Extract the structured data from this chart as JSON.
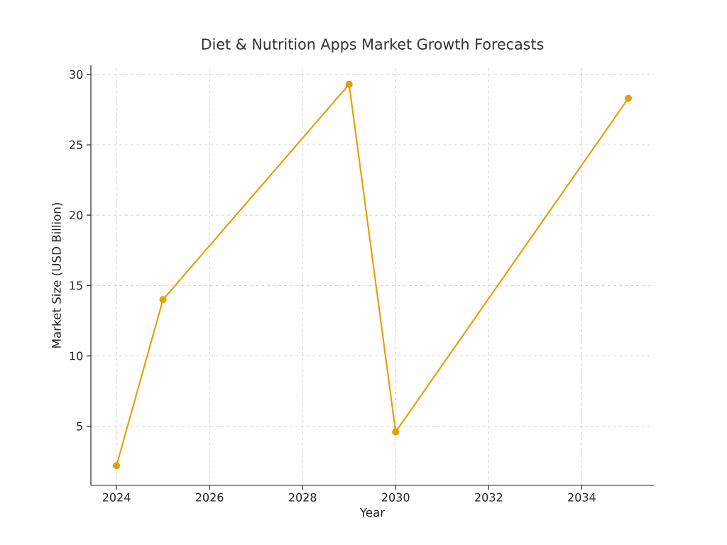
{
  "chart_data": {
    "type": "line",
    "title": "Diet & Nutrition Apps Market Growth Forecasts",
    "xlabel": "Year",
    "ylabel": "Market Size (USD Billion)",
    "x": [
      2024,
      2025,
      2029,
      2030,
      2035
    ],
    "series": [
      {
        "color": "#e69f00",
        "values": [
          2.2,
          14.0,
          29.3,
          4.6,
          28.3
        ]
      }
    ],
    "xlim": [
      2023.45,
      2035.55
    ],
    "ylim": [
      0.8,
      30.65
    ],
    "xticks": [
      2024,
      2026,
      2028,
      2030,
      2032,
      2034
    ],
    "yticks": [
      5,
      10,
      15,
      20,
      25,
      30
    ],
    "grid": true,
    "marker": "circle",
    "line_style": "solid"
  }
}
